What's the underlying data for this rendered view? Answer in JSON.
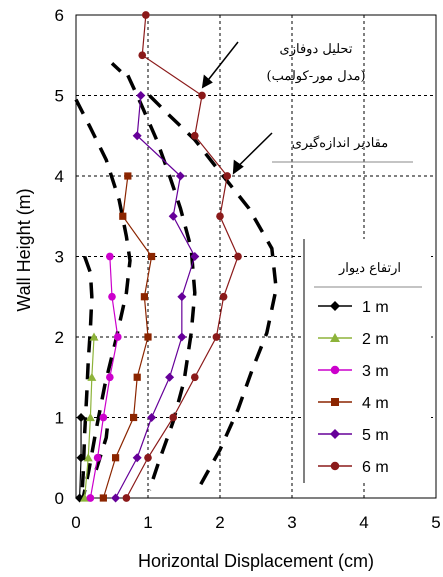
{
  "chart_data": {
    "type": "line",
    "xlabel": "Horizontal Displacement (cm)",
    "ylabel": "Wall Height (m)",
    "xlim": [
      0,
      5
    ],
    "ylim": [
      0,
      6
    ],
    "xticks": [
      "0",
      "1",
      "2",
      "3",
      "4",
      "5"
    ],
    "yticks": [
      "0",
      "1",
      "2",
      "3",
      "4",
      "5",
      "6"
    ],
    "grid": "dashed",
    "legend_title": "ارتفاع دیوار",
    "legend_position": "right",
    "series": [
      {
        "name": "1 m",
        "color": "#000000",
        "marker": "diamond",
        "points": [
          [
            0.05,
            0
          ],
          [
            0.07,
            0.5
          ],
          [
            0.07,
            1
          ]
        ]
      },
      {
        "name": "2 m",
        "color": "#8db33a",
        "marker": "triangle",
        "points": [
          [
            0.12,
            0
          ],
          [
            0.17,
            0.5
          ],
          [
            0.2,
            1
          ],
          [
            0.22,
            1.5
          ],
          [
            0.25,
            2
          ]
        ]
      },
      {
        "name": "3 m",
        "color": "#cc00cc",
        "marker": "circle",
        "points": [
          [
            0.2,
            0
          ],
          [
            0.3,
            0.5
          ],
          [
            0.38,
            1
          ],
          [
            0.47,
            1.5
          ],
          [
            0.58,
            2
          ],
          [
            0.5,
            2.5
          ],
          [
            0.47,
            3
          ]
        ]
      },
      {
        "name": "4 m",
        "color": "#8b2500",
        "marker": "square",
        "points": [
          [
            0.38,
            0
          ],
          [
            0.55,
            0.5
          ],
          [
            0.8,
            1
          ],
          [
            0.85,
            1.5
          ],
          [
            1.0,
            2
          ],
          [
            0.95,
            2.5
          ],
          [
            1.05,
            3
          ],
          [
            0.65,
            3.5
          ],
          [
            0.72,
            4
          ]
        ]
      },
      {
        "name": "5 m",
        "color": "#660099",
        "marker": "diamond",
        "points": [
          [
            0.55,
            0
          ],
          [
            0.85,
            0.5
          ],
          [
            1.05,
            1
          ],
          [
            1.3,
            1.5
          ],
          [
            1.47,
            2
          ],
          [
            1.47,
            2.5
          ],
          [
            1.65,
            3
          ],
          [
            1.35,
            3.5
          ],
          [
            1.45,
            4
          ],
          [
            0.85,
            4.5
          ],
          [
            0.9,
            5
          ]
        ]
      },
      {
        "name": "6 m",
        "color": "#8b1a1a",
        "marker": "circle",
        "points": [
          [
            0.7,
            0
          ],
          [
            1.0,
            0.5
          ],
          [
            1.35,
            1
          ],
          [
            1.65,
            1.5
          ],
          [
            1.95,
            2
          ],
          [
            2.05,
            2.5
          ],
          [
            2.25,
            3
          ],
          [
            2.0,
            3.5
          ],
          [
            2.1,
            4
          ],
          [
            1.65,
            4.5
          ],
          [
            1.75,
            5
          ],
          [
            0.92,
            5.5
          ],
          [
            0.97,
            6
          ]
        ]
      }
    ],
    "dashed_curves": [
      [
        [
          0.0,
          4.95
        ],
        [
          0.2,
          4.6
        ],
        [
          0.42,
          4.2
        ],
        [
          0.6,
          3.7
        ],
        [
          0.7,
          3.25
        ],
        [
          0.75,
          2.95
        ],
        [
          0.7,
          2.55
        ],
        [
          0.55,
          1.95
        ],
        [
          0.4,
          1.4
        ],
        [
          0.28,
          0.85
        ],
        [
          0.18,
          0.35
        ],
        [
          0.1,
          0
        ]
      ],
      [
        [
          0.12,
          3.0
        ],
        [
          0.2,
          2.8
        ],
        [
          0.22,
          2.5
        ],
        [
          0.2,
          2.1
        ],
        [
          0.17,
          1.7
        ],
        [
          0.15,
          1.3
        ],
        [
          0.12,
          0.8
        ],
        [
          0.1,
          0.3
        ],
        [
          0.08,
          0
        ]
      ],
      [
        [
          0.5,
          5.4
        ],
        [
          0.62,
          5.3
        ]
      ],
      [
        [
          0.72,
          5.25
        ],
        [
          0.9,
          4.9
        ],
        [
          1.12,
          4.45
        ],
        [
          1.3,
          4.0
        ],
        [
          1.45,
          3.6
        ],
        [
          1.6,
          3.1
        ],
        [
          1.65,
          2.55
        ],
        [
          1.6,
          2.05
        ],
        [
          1.5,
          1.45
        ],
        [
          1.35,
          0.95
        ],
        [
          1.15,
          0.45
        ],
        [
          1.02,
          0.1
        ]
      ],
      [
        [
          1.02,
          5.0
        ],
        [
          1.3,
          4.75
        ],
        [
          1.65,
          4.45
        ],
        [
          2.0,
          4.05
        ],
        [
          2.4,
          3.6
        ],
        [
          2.72,
          3.1
        ],
        [
          2.78,
          2.6
        ],
        [
          2.65,
          2.05
        ],
        [
          2.45,
          1.6
        ],
        [
          2.25,
          1.1
        ],
        [
          2.0,
          0.6
        ],
        [
          1.72,
          0.15
        ]
      ],
      [
        [
          0.28,
          0.35
        ],
        [
          0.42,
          0.75
        ],
        [
          0.45,
          1.0
        ]
      ]
    ],
    "annotations": [
      {
        "text": "تحلیل دوفازی",
        "text2": "(مدل مور-کولمب)",
        "x": 1.72,
        "y": 5.05
      },
      {
        "text": "مقادیر اندازه‌گیری",
        "x": 2.15,
        "y": 3.98
      }
    ]
  }
}
